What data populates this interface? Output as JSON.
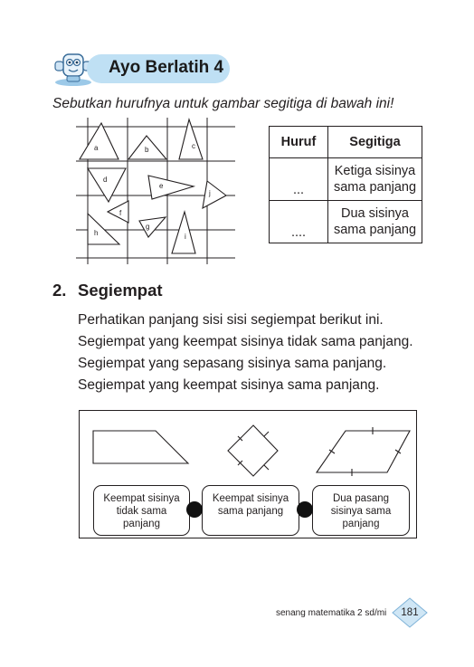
{
  "header": {
    "title": "Ayo Berlatih 4",
    "mascot_icon": "robot-mascot-icon",
    "badge_color": "#bfe0f4"
  },
  "instruction": "Sebutkan hurufnya untuk gambar segitiga di bawah ini!",
  "grid_figure": {
    "triangle_labels": [
      "a",
      "b",
      "c",
      "d",
      "e",
      "f",
      "g",
      "h",
      "i",
      "j"
    ]
  },
  "table": {
    "headers": [
      "Huruf",
      "Segitiga"
    ],
    "rows": [
      {
        "huruf": "...",
        "segitiga_line1": "Ketiga sisinya",
        "segitiga_line2": "sama panjang"
      },
      {
        "huruf": "....",
        "segitiga_line1": "Dua sisinya",
        "segitiga_line2": "sama panjang"
      }
    ]
  },
  "section": {
    "number": "2.",
    "title": "Segiempat",
    "paragraphs": [
      "Perhatikan panjang sisi sisi segiempat berikut ini.",
      "Segiempat yang keempat sisinya tidak sama panjang.",
      "Segiempat yang sepasang sisinya sama panjang.",
      "Segiempat yang keempat sisinya sama panjang."
    ]
  },
  "shape_labels": [
    {
      "line1": "Keempat sisinya",
      "line2": "tidak sama",
      "line3": "panjang"
    },
    {
      "line1": "Keempat sisinya",
      "line2": "sama panjang",
      "line3": ""
    },
    {
      "line1": "Dua pasang",
      "line2": "sisinya sama",
      "line3": "panjang"
    }
  ],
  "footer": {
    "book_title": "senang matematika 2 sd/mi",
    "page_number": "181",
    "page_badge_color": "#cfe6f5"
  }
}
